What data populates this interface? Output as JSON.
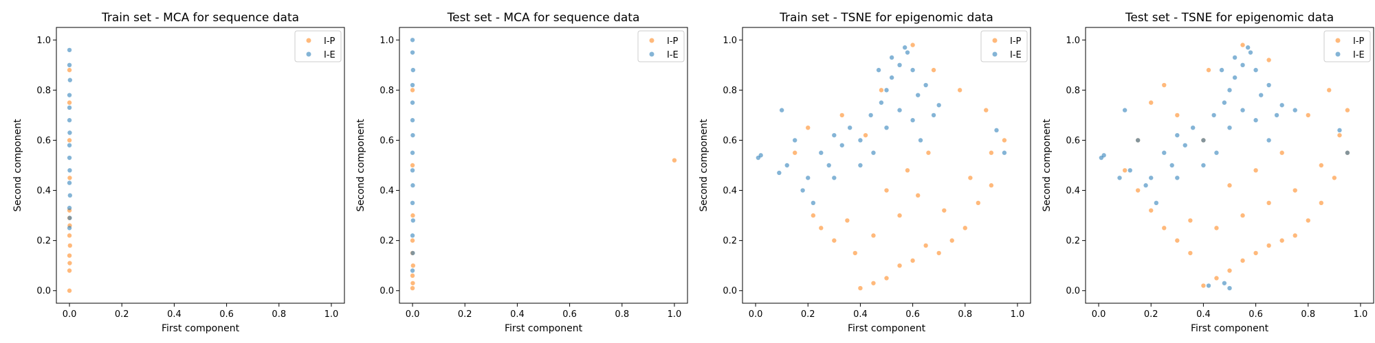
{
  "figure": {
    "legend_entries": [
      "I-P",
      "I-E"
    ],
    "colors": {
      "I-P": "#ff7f0e",
      "I-E": "#1f77b4"
    }
  },
  "chart_data": [
    {
      "type": "scatter",
      "title": "Train set - MCA for sequence data",
      "xlabel": "First component",
      "ylabel": "Second component",
      "xlim": [
        -0.05,
        1.05
      ],
      "ylim": [
        -0.05,
        1.05
      ],
      "xticks": [
        "0.0",
        "0.2",
        "0.4",
        "0.6",
        "0.8",
        "1.0"
      ],
      "yticks": [
        "0.0",
        "0.2",
        "0.4",
        "0.6",
        "0.8",
        "1.0"
      ],
      "legend": "top-right",
      "grid": false,
      "series": [
        {
          "name": "I-P",
          "color": "#ff7f0e",
          "x": [
            0.0,
            0.0,
            0.001,
            0.0,
            0.002,
            0.0,
            0.001,
            0.0,
            0.0,
            0.001,
            0.0,
            0.0,
            0.0
          ],
          "y": [
            0.0,
            0.08,
            0.11,
            0.14,
            0.18,
            0.22,
            0.26,
            0.29,
            0.32,
            0.45,
            0.6,
            0.75,
            0.88
          ]
        },
        {
          "name": "I-E",
          "color": "#1f77b4",
          "x": [
            0.0,
            0.001,
            0.0,
            0.002,
            0.0,
            0.001,
            0.0,
            0.0,
            0.001,
            0.0,
            0.0,
            0.0,
            0.002,
            0.0,
            0.0
          ],
          "y": [
            0.25,
            0.29,
            0.33,
            0.38,
            0.43,
            0.48,
            0.53,
            0.58,
            0.63,
            0.68,
            0.73,
            0.78,
            0.84,
            0.9,
            0.96
          ]
        }
      ]
    },
    {
      "type": "scatter",
      "title": "Test set - MCA for sequence data",
      "xlabel": "First component",
      "ylabel": "Second component",
      "xlim": [
        -0.05,
        1.05
      ],
      "ylim": [
        -0.05,
        1.05
      ],
      "xticks": [
        "0.0",
        "0.2",
        "0.4",
        "0.6",
        "0.8",
        "1.0"
      ],
      "yticks": [
        "0.0",
        "0.2",
        "0.4",
        "0.6",
        "0.8",
        "1.0"
      ],
      "legend": "top-right",
      "grid": false,
      "series": [
        {
          "name": "I-P",
          "color": "#ff7f0e",
          "x": [
            0.0,
            0.001,
            0.0,
            0.002,
            0.0,
            0.0,
            0.001,
            0.0,
            0.0,
            1.0
          ],
          "y": [
            0.01,
            0.03,
            0.06,
            0.1,
            0.15,
            0.2,
            0.3,
            0.5,
            0.8,
            0.52
          ]
        },
        {
          "name": "I-E",
          "color": "#1f77b4",
          "x": [
            0.0,
            0.001,
            0.0,
            0.002,
            0.0,
            0.001,
            0.0,
            0.0,
            0.001,
            0.0,
            0.0,
            0.0,
            0.002,
            0.0,
            0.0
          ],
          "y": [
            0.08,
            0.15,
            0.22,
            0.28,
            0.35,
            0.42,
            0.48,
            0.55,
            0.62,
            0.68,
            0.75,
            0.82,
            0.88,
            0.95,
            1.0
          ]
        }
      ]
    },
    {
      "type": "scatter",
      "title": "Train set - TSNE for epigenomic data",
      "xlabel": "First component",
      "ylabel": "Second component",
      "xlim": [
        -0.05,
        1.05
      ],
      "ylim": [
        -0.05,
        1.05
      ],
      "xticks": [
        "0.0",
        "0.2",
        "0.4",
        "0.6",
        "0.8",
        "1.0"
      ],
      "yticks": [
        "0.0",
        "0.2",
        "0.4",
        "0.6",
        "0.8",
        "1.0"
      ],
      "legend": "top-right",
      "grid": false,
      "series": [
        {
          "name": "I-P",
          "color": "#ff7f0e",
          "x": [
            0.4,
            0.45,
            0.5,
            0.38,
            0.55,
            0.6,
            0.65,
            0.7,
            0.75,
            0.8,
            0.85,
            0.9,
            0.3,
            0.25,
            0.22,
            0.35,
            0.45,
            0.55,
            0.62,
            0.72,
            0.82,
            0.9,
            0.5,
            0.58,
            0.66,
            0.42,
            0.33,
            0.2,
            0.15,
            0.48,
            0.68,
            0.78,
            0.88,
            0.95,
            0.6
          ],
          "y": [
            0.01,
            0.03,
            0.05,
            0.15,
            0.1,
            0.12,
            0.18,
            0.15,
            0.2,
            0.25,
            0.35,
            0.42,
            0.2,
            0.25,
            0.3,
            0.28,
            0.22,
            0.3,
            0.38,
            0.32,
            0.45,
            0.55,
            0.4,
            0.48,
            0.55,
            0.62,
            0.7,
            0.65,
            0.55,
            0.8,
            0.88,
            0.8,
            0.72,
            0.6,
            0.98
          ]
        },
        {
          "name": "I-E",
          "color": "#1f77b4",
          "x": [
            0.01,
            0.02,
            0.1,
            0.12,
            0.09,
            0.15,
            0.18,
            0.2,
            0.22,
            0.25,
            0.28,
            0.3,
            0.33,
            0.36,
            0.4,
            0.44,
            0.48,
            0.5,
            0.52,
            0.55,
            0.58,
            0.6,
            0.62,
            0.65,
            0.68,
            0.7,
            0.45,
            0.5,
            0.55,
            0.6,
            0.63,
            0.92,
            0.95,
            0.3,
            0.4,
            0.52,
            0.57,
            0.47
          ],
          "y": [
            0.53,
            0.54,
            0.72,
            0.5,
            0.47,
            0.6,
            0.4,
            0.45,
            0.35,
            0.55,
            0.5,
            0.62,
            0.58,
            0.65,
            0.6,
            0.7,
            0.75,
            0.8,
            0.85,
            0.9,
            0.95,
            0.88,
            0.78,
            0.82,
            0.7,
            0.74,
            0.55,
            0.65,
            0.72,
            0.68,
            0.6,
            0.64,
            0.55,
            0.45,
            0.5,
            0.93,
            0.97,
            0.88
          ]
        }
      ]
    },
    {
      "type": "scatter",
      "title": "Test set - TSNE for epigenomic data",
      "xlabel": "First component",
      "ylabel": "Second component",
      "xlim": [
        -0.05,
        1.05
      ],
      "ylim": [
        -0.05,
        1.05
      ],
      "xticks": [
        "0.0",
        "0.2",
        "0.4",
        "0.6",
        "0.8",
        "1.0"
      ],
      "yticks": [
        "0.0",
        "0.2",
        "0.4",
        "0.6",
        "0.8",
        "1.0"
      ],
      "legend": "top-right",
      "grid": false,
      "series": [
        {
          "name": "I-P",
          "color": "#ff7f0e",
          "x": [
            0.4,
            0.45,
            0.5,
            0.35,
            0.55,
            0.6,
            0.65,
            0.7,
            0.75,
            0.8,
            0.85,
            0.9,
            0.95,
            0.3,
            0.25,
            0.2,
            0.15,
            0.1,
            0.35,
            0.45,
            0.55,
            0.65,
            0.75,
            0.85,
            0.92,
            0.5,
            0.6,
            0.7,
            0.4,
            0.3,
            0.2,
            0.15,
            0.25,
            0.8,
            0.88,
            0.95,
            0.55,
            0.65,
            0.42
          ],
          "y": [
            0.02,
            0.05,
            0.08,
            0.15,
            0.12,
            0.15,
            0.18,
            0.2,
            0.22,
            0.28,
            0.35,
            0.45,
            0.55,
            0.2,
            0.25,
            0.32,
            0.4,
            0.48,
            0.28,
            0.25,
            0.3,
            0.35,
            0.4,
            0.5,
            0.62,
            0.42,
            0.48,
            0.55,
            0.6,
            0.7,
            0.75,
            0.6,
            0.82,
            0.7,
            0.8,
            0.72,
            0.98,
            0.92,
            0.88
          ]
        },
        {
          "name": "I-E",
          "color": "#1f77b4",
          "x": [
            0.01,
            0.02,
            0.08,
            0.1,
            0.12,
            0.15,
            0.18,
            0.2,
            0.22,
            0.25,
            0.28,
            0.3,
            0.33,
            0.36,
            0.4,
            0.44,
            0.48,
            0.5,
            0.52,
            0.55,
            0.58,
            0.6,
            0.62,
            0.65,
            0.68,
            0.7,
            0.75,
            0.45,
            0.5,
            0.55,
            0.6,
            0.65,
            0.92,
            0.95,
            0.3,
            0.4,
            0.52,
            0.57,
            0.47,
            0.42,
            0.48,
            0.5
          ],
          "y": [
            0.53,
            0.54,
            0.45,
            0.72,
            0.48,
            0.6,
            0.42,
            0.45,
            0.35,
            0.55,
            0.5,
            0.62,
            0.58,
            0.65,
            0.6,
            0.7,
            0.75,
            0.8,
            0.85,
            0.9,
            0.95,
            0.88,
            0.78,
            0.82,
            0.7,
            0.74,
            0.72,
            0.55,
            0.65,
            0.72,
            0.68,
            0.6,
            0.64,
            0.55,
            0.45,
            0.5,
            0.93,
            0.97,
            0.88,
            0.02,
            0.03,
            0.01
          ]
        }
      ]
    }
  ]
}
